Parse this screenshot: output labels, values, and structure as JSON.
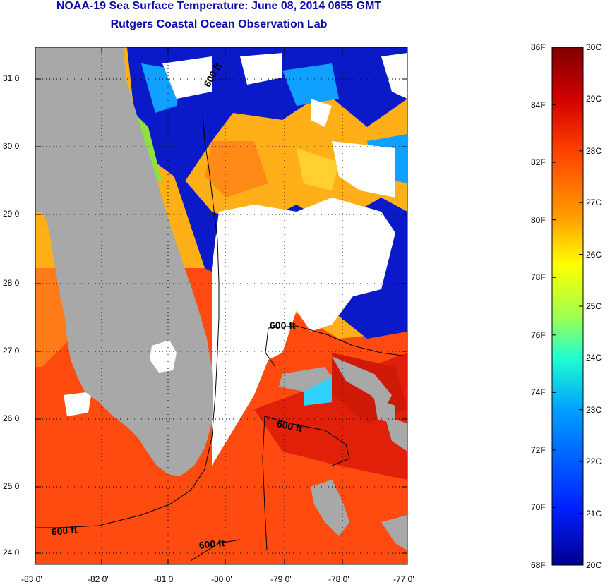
{
  "title": {
    "line1": "NOAA-19 Sea Surface Temperature:  June 08, 2014 0655 GMT",
    "line2": "Rutgers Coastal Ocean Observation Lab"
  },
  "axes": {
    "x_labels": [
      "-83 0'",
      "-82 0'",
      "-81 0'",
      "-80 0'",
      "-79 0'",
      "-78 0'",
      "-77 0'"
    ],
    "y_labels": [
      "31 0'",
      "30 0'",
      "29 0'",
      "28 0'",
      "27 0'",
      "26 0'",
      "25 0'",
      "24 0'"
    ]
  },
  "contours": {
    "label": "600 ft",
    "labels": [
      "600 ft",
      "600 ft",
      "600 ft",
      "600 ft",
      "600 ft"
    ]
  },
  "colorbar": {
    "f_labels": [
      "86F",
      "84F",
      "82F",
      "80F",
      "78F",
      "76F",
      "74F",
      "72F",
      "70F",
      "68F"
    ],
    "c_labels": [
      "30C",
      "29C",
      "28C",
      "27C",
      "26C",
      "25C",
      "24C",
      "23C",
      "22C",
      "21C",
      "20C"
    ],
    "colors": [
      "#00008f",
      "#0020ff",
      "#00a0ff",
      "#20ffd0",
      "#a0ff50",
      "#ffff00",
      "#ffa000",
      "#ff4000",
      "#d00000",
      "#800000"
    ]
  },
  "map_colors": {
    "land": "#a8a8a8",
    "cloud": "#ffffff",
    "warm": "#ff4a10",
    "hot": "#e0200a",
    "mid": "#ffb018",
    "cool": "#10a0ff",
    "cold": "#0a1ac8",
    "green": "#90e040"
  }
}
